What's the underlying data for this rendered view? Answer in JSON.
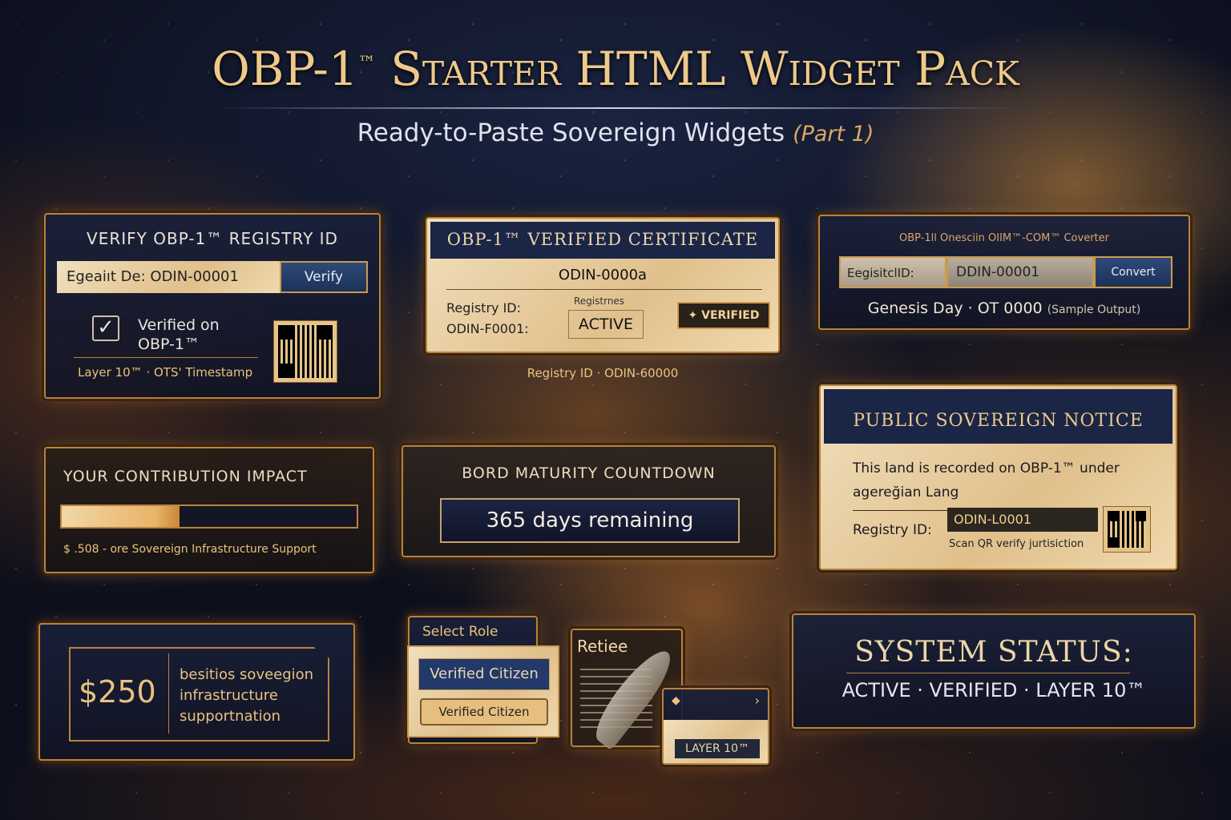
{
  "header": {
    "title_main": "OBP-1",
    "title_tm": "™",
    "title_rest": "Starter HTML Widget Pack",
    "subtitle": "Ready-to-Paste Sovereign Widgets",
    "subtitle_part": "(Part 1)"
  },
  "verify": {
    "title": "Verify OBP-1™ Registry ID",
    "input_value": "Egeaiıt De: ODIN-00001",
    "button": "Verify",
    "verified_line1": "Verified on",
    "verified_line2": "OBP-1™",
    "footer": "Layer 10™ · OTS' Timestamp",
    "icon": "check-box-icon"
  },
  "certificate": {
    "title": "OBP-1™ Verified Certificate",
    "id": "ODIN-0000a",
    "registry_label": "Registry ID:",
    "registry_value": "ODIN-F0001:",
    "status_label": "Registrnes",
    "status": "ACTIVE",
    "badge": "VERIFIED",
    "caption": "Registry ID · ODIN-60000"
  },
  "converter": {
    "title": "OBP-1ll Onesciin OIIM™-COM™ Coverter",
    "label": "EegisitclID:",
    "input_value": "DDIN-00001",
    "button": "Convert",
    "output": "Genesis Day · OT 0000",
    "output_note": "(Sample Output)"
  },
  "notice": {
    "title": "Public Sovereign Notice",
    "line1": "This land is recorded on OBP-1™ under",
    "line2": "agereğian Lang",
    "registry_label": "Registry ID:",
    "registry_value": "ODIN-L0001",
    "scan": "Scan QR verify jurtisiction"
  },
  "contribution": {
    "title": "Your Contribution Impact",
    "progress_percent": 40,
    "caption": "$ .508 - ore Sovereign Infrastructure Support"
  },
  "countdown": {
    "title": "Bord Maturity Countdown",
    "value": "365 days remaining"
  },
  "donation": {
    "amount": "$250",
    "text": [
      "besitios soveegion",
      "infrastructure",
      "supportnation"
    ]
  },
  "role": {
    "label": "Select Role",
    "selected": "Verified Citizen",
    "option": "Verified Citizen"
  },
  "doc": {
    "title": "Retiee"
  },
  "layer": {
    "value": "LAYER 10™"
  },
  "status": {
    "title": "System Status:",
    "line": "ACTIVE · VERIFIED · LAYER 10™"
  },
  "colors": {
    "gold": "#e9c27e",
    "navy": "#1d3158",
    "bronze": "#b8823e"
  }
}
